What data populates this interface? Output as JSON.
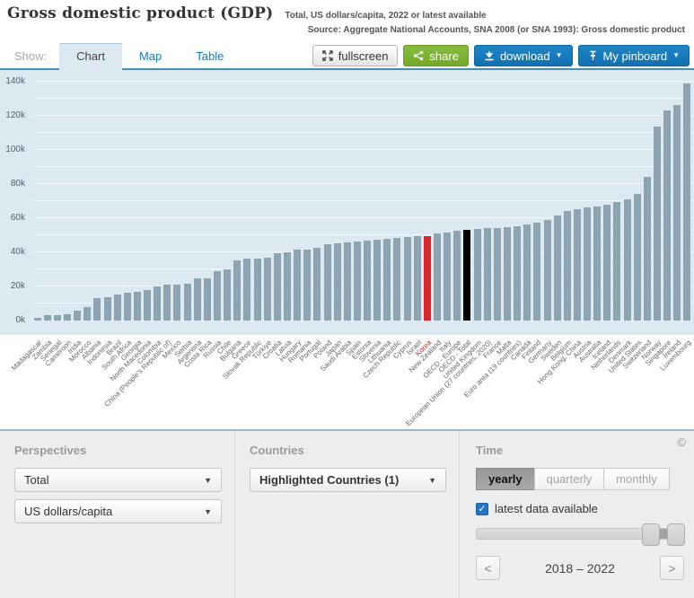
{
  "header": {
    "title": "Gross domestic product (GDP)",
    "subtitle": "Total, US dollars/capita, 2022 or latest available",
    "source": "Source: Aggregate National Accounts, SNA 2008 (or SNA 1993): Gross domestic product"
  },
  "toolbar": {
    "show_label": "Show:",
    "tabs": [
      {
        "label": "Chart",
        "active": true
      },
      {
        "label": "Map",
        "active": false
      },
      {
        "label": "Table",
        "active": false
      }
    ],
    "buttons": {
      "fullscreen": "fullscreen",
      "share": "share",
      "download": "download",
      "pinboard": "My pinboard"
    }
  },
  "chart_data": {
    "type": "bar",
    "title": "Gross domestic product (GDP)",
    "xlabel": "",
    "ylabel": "US dollars/capita",
    "ylim": [
      0,
      140000
    ],
    "grid": true,
    "grid_step": 10000,
    "ytick_step": 20000,
    "ytick_labels": [
      "0k",
      "20k",
      "40k",
      "60k",
      "80k",
      "100k",
      "120k",
      "140k"
    ],
    "legend_position": "none",
    "background": "#dce9f1",
    "bar_color": "#8da4b2",
    "categories": [
      "Madagascar",
      "Zambia",
      "Senegal",
      "Cameroon",
      "India",
      "Morocco",
      "Albania",
      "Indonesia",
      "Brazil",
      "South Africa",
      "Georgia",
      "North Macedonia",
      "Colombia",
      "China (People's Republic of)",
      "Mexico",
      "Serbia",
      "Argentina",
      "Costa Rica",
      "Russia",
      "Chile",
      "Bulgaria",
      "Greece",
      "Slovak Republic",
      "Türkiye",
      "Croatia",
      "Latvia",
      "Hungary",
      "Romania",
      "Portugal",
      "Poland",
      "Japan",
      "Saudi Arabia",
      "Spain",
      "Estonia",
      "Slovenia",
      "Lithuania",
      "Czech Republic",
      "Cyprus",
      "Israel",
      "Korea",
      "New Zealand",
      "Italy",
      "OECD - Europe",
      "OECD - Total",
      "United Kingdom",
      "European Union (27 countries, 2020)",
      "France",
      "Malta",
      "Euro area (19 countries)",
      "Canada",
      "Finland",
      "Germany",
      "Sweden",
      "Belgium",
      "Hong Kong, China",
      "Austria",
      "Australia",
      "Iceland",
      "Netherlands",
      "Denmark",
      "United States",
      "Switzerland",
      "Norway",
      "Singapore",
      "Ireland",
      "Luxembourg"
    ],
    "values": [
      1400,
      3000,
      3300,
      3900,
      5900,
      8000,
      13400,
      13900,
      15200,
      16100,
      17000,
      17900,
      20200,
      21000,
      21100,
      21400,
      24500,
      25000,
      28900,
      29800,
      35200,
      36100,
      36200,
      36600,
      39600,
      40200,
      41400,
      41500,
      42900,
      45000,
      45500,
      46000,
      46500,
      47000,
      47500,
      48000,
      48500,
      49000,
      49300,
      49600,
      51000,
      51800,
      52500,
      53100,
      53600,
      54000,
      54300,
      54800,
      55300,
      56300,
      57200,
      59000,
      61500,
      64300,
      65200,
      66100,
      67000,
      68000,
      69500,
      71000,
      74000,
      84000,
      113500,
      123000,
      126500,
      139000
    ],
    "bar_highlights": {
      "Korea": "#d7262c",
      "OECD - Total": "#000000"
    },
    "label_highlights": {
      "Korea": "#d7262c"
    }
  },
  "panels": {
    "perspectives": {
      "heading": "Perspectives",
      "dropdowns": [
        "Total",
        "US dollars/capita"
      ]
    },
    "countries": {
      "heading": "Countries",
      "dropdown": "Highlighted Countries (1)"
    },
    "time": {
      "heading": "Time",
      "copyright_symbol": "©",
      "frequency_options": [
        {
          "label": "yearly",
          "active": true
        },
        {
          "label": "quarterly",
          "active": false
        },
        {
          "label": "monthly",
          "active": false
        }
      ],
      "checkbox_label": "latest data available",
      "checkbox_checked": true,
      "checkmark": "✓",
      "range_label": "2018 – 2022",
      "prev_symbol": "<",
      "next_symbol": ">"
    }
  }
}
